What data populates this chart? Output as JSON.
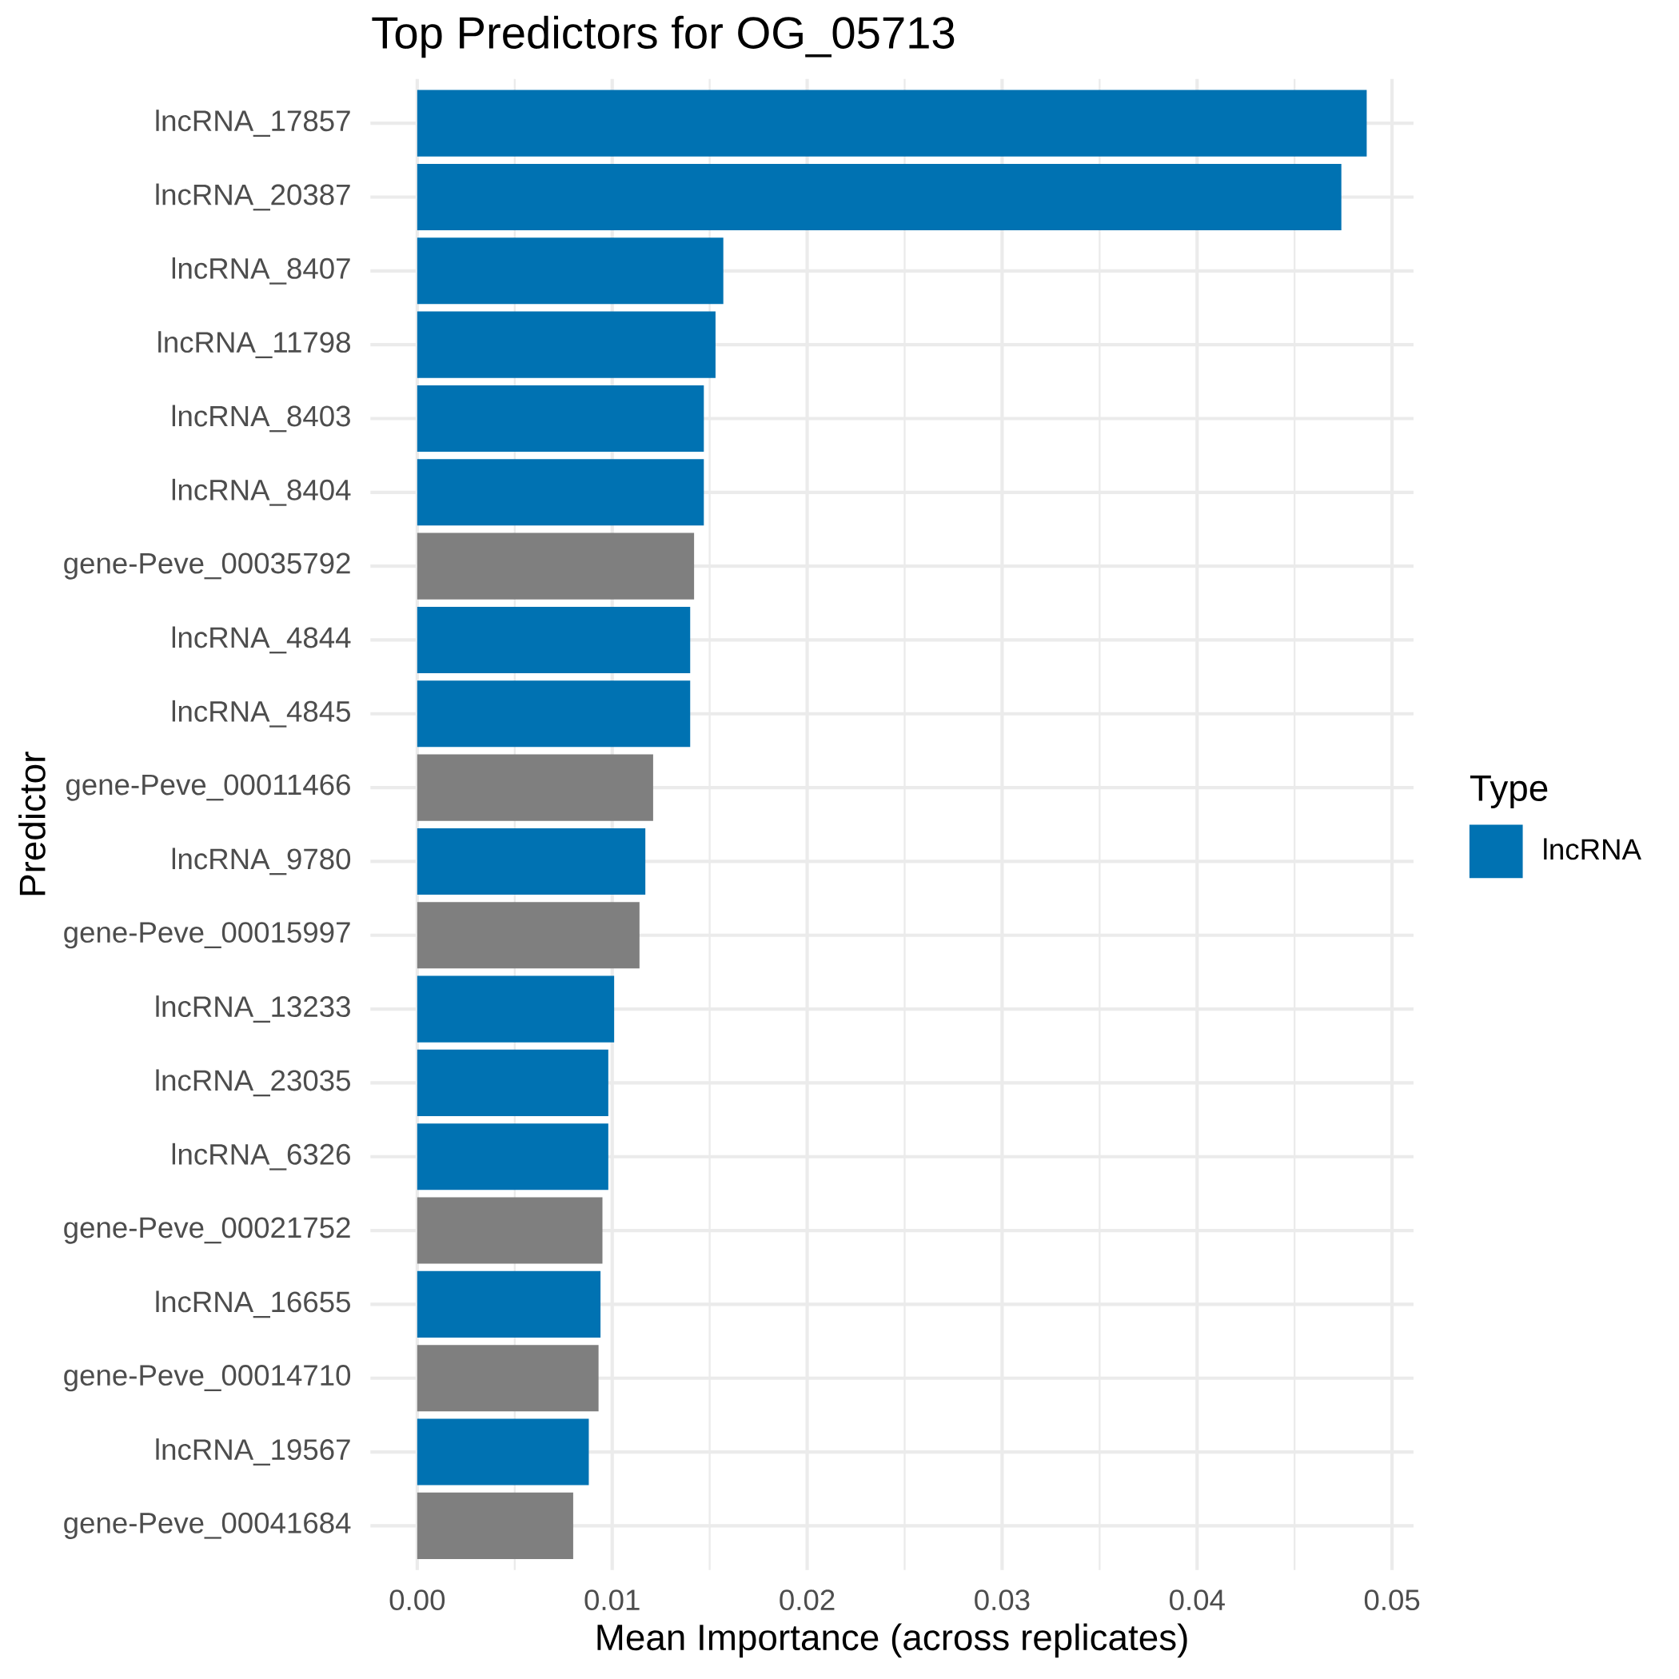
{
  "chart_data": {
    "type": "bar",
    "orientation": "horizontal",
    "title": "Top Predictors for OG_05713",
    "xlabel": "Mean Importance (across replicates)",
    "ylabel": "Predictor",
    "legend_title": "Type",
    "categories": [
      "lncRNA_17857",
      "lncRNA_20387",
      "lncRNA_8407",
      "lncRNA_11798",
      "lncRNA_8403",
      "lncRNA_8404",
      "gene-Peve_00035792",
      "lncRNA_4844",
      "lncRNA_4845",
      "gene-Peve_00011466",
      "lncRNA_9780",
      "gene-Peve_00015997",
      "lncRNA_13233",
      "lncRNA_23035",
      "lncRNA_6326",
      "gene-Peve_00021752",
      "lncRNA_16655",
      "gene-Peve_00014710",
      "lncRNA_19567",
      "gene-Peve_00041684"
    ],
    "series": [
      {
        "name": "lncRNA",
        "color": "#0072b2",
        "values": [
          0.0487,
          0.0474,
          0.0157,
          0.0153,
          0.0147,
          0.0147,
          null,
          0.014,
          0.014,
          null,
          0.0117,
          null,
          0.0101,
          0.0098,
          0.0098,
          null,
          0.0094,
          null,
          0.0088,
          null
        ]
      },
      {
        "color": "#7f7f7f",
        "values": [
          null,
          null,
          null,
          null,
          null,
          null,
          0.0142,
          null,
          null,
          0.0121,
          null,
          0.0114,
          null,
          null,
          null,
          0.0095,
          null,
          0.0093,
          null,
          0.008
        ]
      }
    ],
    "xlim": [
      -0.0024,
      0.0511
    ],
    "xticks": [
      {
        "value": 0,
        "label": "0.00"
      },
      {
        "value": 0.005,
        "label": null
      },
      0.01,
      {
        "value": 0.015,
        "label": null
      },
      0.02,
      {
        "value": 0.025,
        "label": null
      },
      0.03,
      {
        "value": 0.035,
        "label": null
      },
      0.04,
      {
        "value": 0.045,
        "label": null
      },
      0.05
    ],
    "grid": true,
    "legend": "right"
  }
}
